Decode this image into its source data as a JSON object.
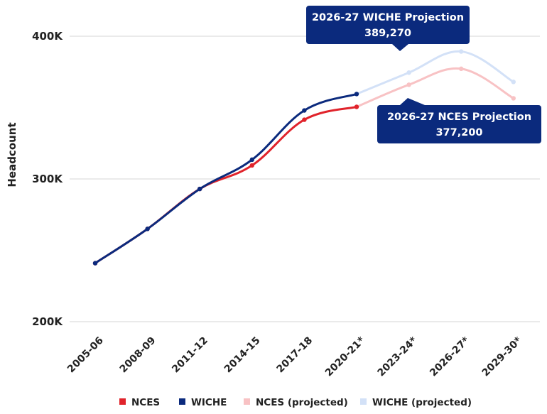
{
  "chart_data": {
    "type": "line",
    "categories": [
      "2005-06",
      "2008-09",
      "2011-12",
      "2014-15",
      "2017-18",
      "2020-21*",
      "2023-24*",
      "2026-27*",
      "2029-30*"
    ],
    "ylabel": "Headcount",
    "yticks": [
      "200K",
      "300K",
      "400K"
    ],
    "yticks_values": [
      200000,
      300000,
      400000
    ],
    "ylim": [
      200000,
      400000
    ],
    "grid": true,
    "legend_position": "bottom",
    "series": [
      {
        "name": "NCES",
        "color": "#e0232b",
        "values": [
          241000,
          265000,
          293000,
          309500,
          341500,
          350500,
          null,
          null,
          null
        ]
      },
      {
        "name": "WICHE",
        "color": "#0b2a7d",
        "values": [
          241000,
          265000,
          293000,
          313500,
          348000,
          359500,
          null,
          null,
          null
        ]
      },
      {
        "name": "NCES (projected)",
        "color": "#f8c2c4",
        "values": [
          null,
          null,
          null,
          null,
          null,
          350500,
          366000,
          377200,
          356500
        ]
      },
      {
        "name": "WICHE (projected)",
        "color": "#d3e1f7",
        "values": [
          null,
          null,
          null,
          null,
          null,
          359500,
          374500,
          389270,
          368000
        ]
      }
    ],
    "annotations": [
      {
        "line1": "2026-27 WICHE Projection",
        "line2": "389,270",
        "category": "2026-27*",
        "value": 389270,
        "color": "#0b2a7d"
      },
      {
        "line1": "2026-27 NCES Projection",
        "line2": "377,200",
        "category": "2026-27*",
        "value": 377200,
        "color": "#0b2a7d"
      }
    ]
  }
}
